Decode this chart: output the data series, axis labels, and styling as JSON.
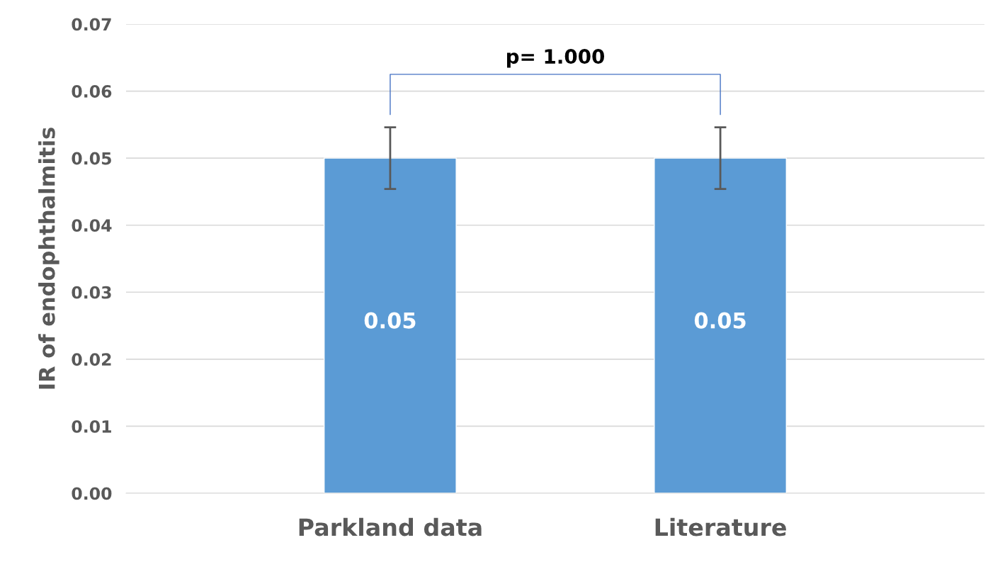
{
  "chart_data": {
    "type": "bar",
    "ylabel": "IR of endophthalmitis",
    "categories": [
      "Parkland data",
      "Literature"
    ],
    "values": [
      0.05,
      0.05
    ],
    "color": "#5b9bd5",
    "errors": [
      0.0046,
      0.0046
    ],
    "ylim": [
      0,
      0.07
    ],
    "yticks": [
      {
        "value": 0,
        "label": "0.00"
      },
      {
        "value": 0.01,
        "label": "0.01"
      },
      {
        "value": 0.02,
        "label": "0.02"
      },
      {
        "value": 0.03,
        "label": "0.03"
      },
      {
        "value": 0.04,
        "label": "0.04"
      },
      {
        "value": 0.05,
        "label": "0.05"
      },
      {
        "value": 0.06,
        "label": "0.06"
      },
      {
        "value": 0.07,
        "label": "0.07"
      }
    ],
    "grid": "y",
    "data_labels": true,
    "annotations": [
      "p= 1.000"
    ]
  }
}
